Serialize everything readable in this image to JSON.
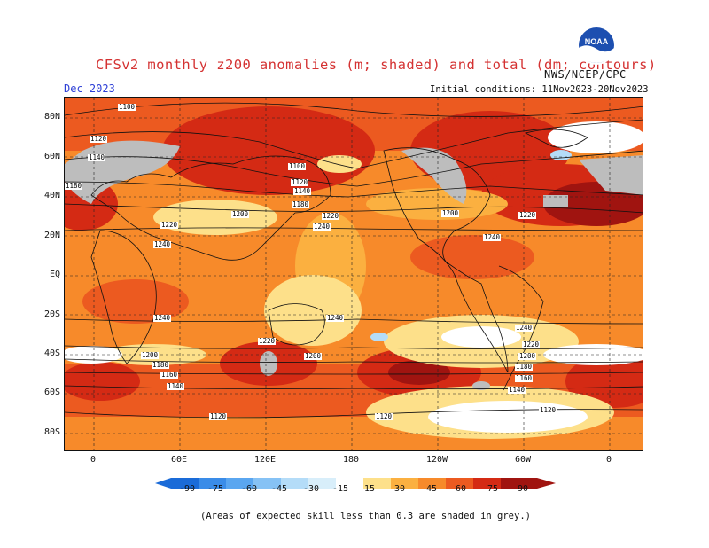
{
  "header": {
    "title": "CFSv2 monthly z200 anomalies (m; shaded) and total (dm; contours)",
    "org": "NWS/NCEP/CPC",
    "month": "Dec 2023",
    "initial_conditions": "Initial conditions: 11Nov2023-20Nov2023",
    "logo": "NOAA"
  },
  "axes": {
    "lat_labels": [
      "80N",
      "60N",
      "40N",
      "20N",
      "EQ",
      "20S",
      "40S",
      "60S",
      "80S"
    ],
    "lon_labels": [
      "0",
      "60E",
      "120E",
      "180",
      "120W",
      "60W",
      "0"
    ]
  },
  "contour_labels": [
    "1100",
    "1120",
    "1140",
    "1160",
    "1180",
    "1200",
    "1220",
    "1240"
  ],
  "colorbar": {
    "labels": [
      "-90",
      "-75",
      "-60",
      "-45",
      "-30",
      "-15",
      "15",
      "30",
      "45",
      "60",
      "75",
      "90"
    ],
    "colors": [
      "#1a6bd8",
      "#3a8ce8",
      "#5aa6f0",
      "#86c2f5",
      "#b4dcf8",
      "#d8eefa",
      "#ffffff",
      "#fde08a",
      "#fbb040",
      "#f78a2a",
      "#ec5a20",
      "#d42a14",
      "#a01410"
    ]
  },
  "note": "(Areas of expected skill less than 0.3 are shaded in grey.)"
}
